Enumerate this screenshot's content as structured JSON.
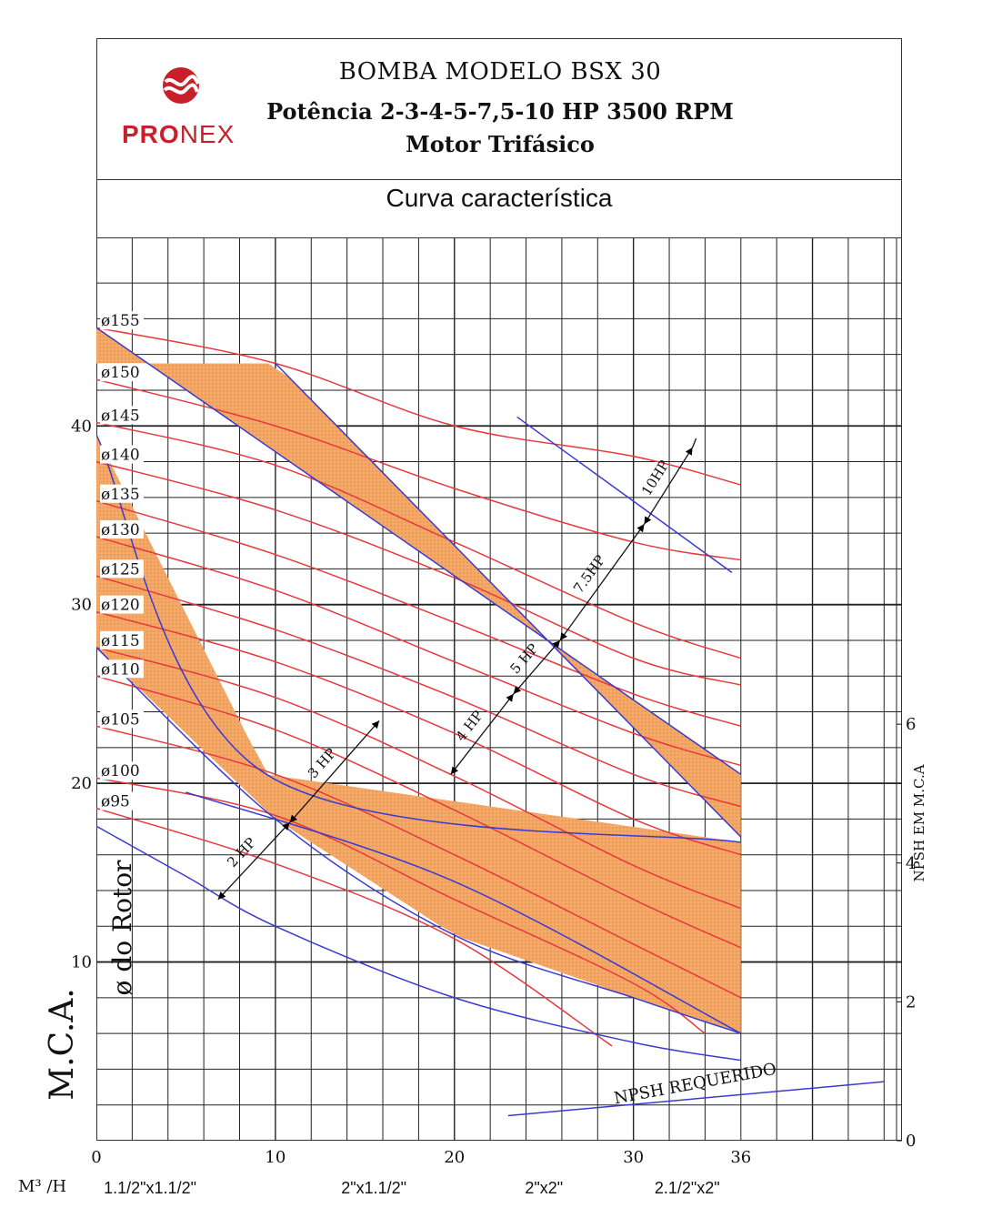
{
  "header": {
    "title": "BOMBA MODELO BSX 30",
    "power": "Potência 2-3-4-5-7,5-10 HP 3500 RPM",
    "motor": "Motor Trifásico",
    "brand_a": "PRO",
    "brand_b": "NEX",
    "subtitle": "Curva característica"
  },
  "colors": {
    "band": "#f4a968",
    "curve": "#e8383d",
    "power_line": "#3a3ad0",
    "grid": "#222222",
    "brand": "#c8202a"
  },
  "chart_data": {
    "type": "line",
    "xlabel": "M³  /H",
    "ylabel": "M.C.A.",
    "ylabel2": "ø do Rotor",
    "right_label": "NPSH EM M.C.A",
    "xlim": [
      0,
      45
    ],
    "ylim": [
      0,
      50.5
    ],
    "x_ticks": [
      0,
      10,
      20,
      30,
      36
    ],
    "y_ticks": [
      10,
      20,
      30,
      40
    ],
    "right_ticks": [
      0,
      2,
      4,
      6
    ],
    "right_range": [
      0,
      13
    ],
    "connections": [
      {
        "label": "1.1/2\"x1.1/2\"",
        "x": 3
      },
      {
        "label": "2\"x1.1/2\"",
        "x": 15.5
      },
      {
        "label": "2\"x2\"",
        "x": 25
      },
      {
        "label": "2.1/2\"x2\"",
        "x": 33
      }
    ],
    "impeller_curves": [
      {
        "name": "ø155",
        "x": [
          0,
          10,
          20,
          30,
          36
        ],
        "y": [
          45.5,
          43.5,
          40,
          38.3,
          36.7
        ]
      },
      {
        "name": "ø150",
        "x": [
          0,
          10,
          20,
          30,
          36
        ],
        "y": [
          42.6,
          40,
          36.5,
          33.5,
          32.5
        ]
      },
      {
        "name": "ø145",
        "x": [
          0,
          10,
          20,
          30,
          36
        ],
        "y": [
          40.2,
          37.8,
          33.5,
          29,
          27
        ]
      },
      {
        "name": "ø140",
        "x": [
          0,
          10,
          20,
          30,
          36
        ],
        "y": [
          38,
          35.3,
          31.5,
          27,
          25.5
        ]
      },
      {
        "name": "ø135",
        "x": [
          0,
          10,
          20,
          30,
          36
        ],
        "y": [
          35.8,
          32.8,
          29,
          25,
          23.2
        ]
      },
      {
        "name": "ø130",
        "x": [
          0,
          10,
          20,
          30,
          36
        ],
        "y": [
          33.8,
          30.8,
          26.8,
          22.8,
          21
        ]
      },
      {
        "name": "ø125",
        "x": [
          0,
          10,
          20,
          30,
          36
        ],
        "y": [
          31.6,
          28.6,
          24.8,
          20.5,
          18.7
        ]
      },
      {
        "name": "ø120",
        "x": [
          0,
          10,
          20,
          30,
          36
        ],
        "y": [
          29.6,
          26.8,
          22.8,
          18,
          16
        ]
      },
      {
        "name": "ø115",
        "x": [
          0,
          10,
          20,
          30,
          36
        ],
        "y": [
          27.6,
          24.8,
          20.4,
          15.4,
          13
        ]
      },
      {
        "name": "ø110",
        "x": [
          0,
          10,
          20,
          30,
          36
        ],
        "y": [
          26,
          23,
          18.5,
          13.5,
          10.8
        ]
      },
      {
        "name": "ø105",
        "x": [
          0,
          10,
          20,
          30,
          36
        ],
        "y": [
          23.2,
          20.5,
          16,
          11,
          8
        ]
      },
      {
        "name": "ø100",
        "x": [
          0,
          10,
          20,
          30,
          34
        ],
        "y": [
          20.3,
          18.2,
          13.5,
          8.8,
          6
        ]
      },
      {
        "name": "ø95",
        "x": [
          0,
          10,
          20,
          28.8
        ],
        "y": [
          18.6,
          15.5,
          11.3,
          5.3
        ]
      }
    ],
    "power_lines": [
      {
        "x": [
          0,
          36
        ],
        "y": [
          45.5,
          20.5
        ]
      },
      {
        "x": [
          0,
          9.5,
          36
        ],
        "y": [
          39.5,
          20.5,
          16.7
        ]
      },
      {
        "x": [
          0,
          10,
          20,
          30,
          36
        ],
        "y": [
          27.6,
          18,
          11.5,
          8,
          6
        ]
      },
      {
        "x": [
          0,
          5,
          10,
          20,
          30,
          36
        ],
        "y": [
          17.6,
          14.8,
          12,
          8,
          5.5,
          4.5
        ]
      },
      {
        "x": [
          10,
          36
        ],
        "y": [
          43.5,
          17
        ]
      },
      {
        "x": [
          5,
          20,
          36
        ],
        "y": [
          19.5,
          14.5,
          6
        ]
      },
      {
        "x": [
          23.5,
          35.5
        ],
        "y": [
          40.5,
          31.8
        ]
      }
    ],
    "npsh": {
      "label": "NPSH REQUERIDO",
      "x": [
        23,
        44
      ],
      "y": [
        1.4,
        3.3
      ]
    },
    "power_marks": [
      {
        "label": "2 HP",
        "from": [
          6.8,
          13.5
        ],
        "to": [
          10.8,
          17.8
        ]
      },
      {
        "label": "3 HP",
        "from": [
          10.8,
          17.8
        ],
        "to": [
          15.8,
          23.5
        ]
      },
      {
        "label": "4 HP",
        "from": [
          19.8,
          20.5
        ],
        "to": [
          23.3,
          25
        ]
      },
      {
        "label": "5 HP",
        "from": [
          23.3,
          25
        ],
        "to": [
          25.9,
          28
        ]
      },
      {
        "label": "7.5HP",
        "from": [
          25.9,
          28
        ],
        "to": [
          30.6,
          34.5
        ]
      },
      {
        "label": "10HP",
        "from": [
          30.6,
          34.5
        ],
        "to": [
          33.3,
          38.8
        ]
      }
    ]
  }
}
